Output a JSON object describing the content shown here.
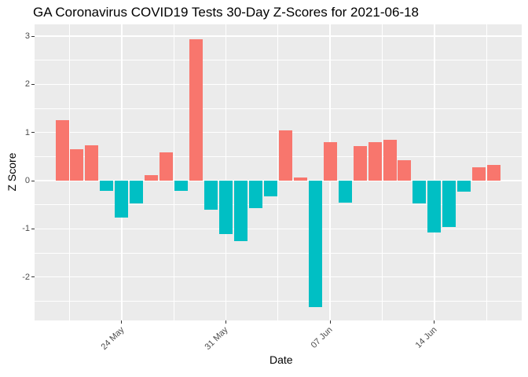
{
  "chart_data": {
    "type": "bar",
    "title": "GA Coronavirus COVID19 Tests 30-Day Z-Scores for 2021-06-18",
    "xlabel": "Date",
    "ylabel": "Z Score",
    "x": [
      "2021-05-20",
      "2021-05-21",
      "2021-05-22",
      "2021-05-23",
      "2021-05-24",
      "2021-05-25",
      "2021-05-26",
      "2021-05-27",
      "2021-05-28",
      "2021-05-29",
      "2021-05-30",
      "2021-05-31",
      "2021-06-01",
      "2021-06-02",
      "2021-06-03",
      "2021-06-04",
      "2021-06-05",
      "2021-06-06",
      "2021-06-07",
      "2021-06-08",
      "2021-06-09",
      "2021-06-10",
      "2021-06-11",
      "2021-06-12",
      "2021-06-13",
      "2021-06-14",
      "2021-06-15",
      "2021-06-16",
      "2021-06-17",
      "2021-06-18"
    ],
    "values": [
      1.26,
      0.66,
      0.73,
      -0.22,
      -0.76,
      -0.47,
      0.11,
      0.59,
      -0.22,
      2.94,
      -0.61,
      -1.11,
      -1.26,
      -0.57,
      -0.33,
      1.05,
      0.07,
      -2.62,
      0.8,
      -0.45,
      0.72,
      0.8,
      0.85,
      0.42,
      -0.48,
      -1.07,
      -0.96,
      -0.23,
      0.27,
      0.33
    ],
    "color_rule": "positive bars salmon, negative bars teal",
    "positive_color": "#F8766D",
    "negative_color": "#00BFC4",
    "panel_background": "#EBEBEB",
    "grid_color": "#FFFFFF",
    "tick_label_color": "#4D4D4D",
    "ylim": [
      -2.9,
      3.25
    ],
    "yticks": [
      3,
      2,
      1,
      0,
      -1,
      -2
    ],
    "ytick_minor": [
      2.5,
      1.5,
      0.5,
      -0.5,
      -1.5,
      -2.5
    ],
    "xticks": [
      {
        "label": "24 May",
        "index": 4
      },
      {
        "label": "31 May",
        "index": 11
      },
      {
        "label": "07 Jun",
        "index": 18
      },
      {
        "label": "14 Jun",
        "index": 25
      }
    ],
    "xtick_minor_indices": [
      0.5,
      7.5,
      14.5,
      21.5,
      28.5
    ],
    "grid": "on",
    "legend": "none"
  }
}
